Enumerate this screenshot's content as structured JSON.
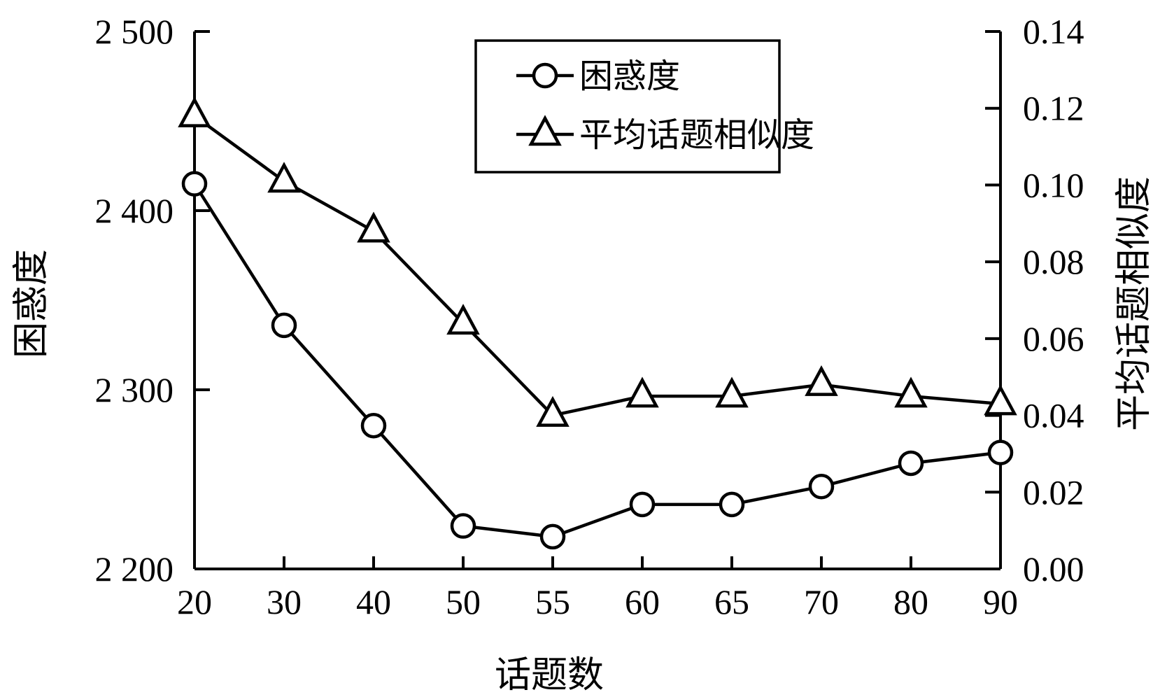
{
  "chart_data": {
    "type": "line",
    "x": [
      "20",
      "30",
      "40",
      "50",
      "55",
      "60",
      "65",
      "70",
      "80",
      "90"
    ],
    "xlabel": "话题数",
    "y_left": {
      "label": "困惑度",
      "range": [
        2200,
        2500
      ],
      "ticks": [
        2200,
        2300,
        2400,
        2500
      ],
      "tick_labels": [
        "2 200",
        "2 300",
        "2 400",
        "2 500"
      ]
    },
    "y_right": {
      "label": "平均话题相似度",
      "range": [
        0,
        0.14
      ],
      "ticks": [
        0,
        0.02,
        0.04,
        0.06,
        0.08,
        0.1,
        0.12,
        0.14
      ],
      "tick_labels": [
        "0.00",
        "0.02",
        "0.04",
        "0.06",
        "0.08",
        "0.10",
        "0.12",
        "0.14"
      ]
    },
    "series": [
      {
        "name": "困惑度",
        "axis": "left",
        "marker": "circle",
        "values": [
          2415,
          2336,
          2280,
          2224,
          2218,
          2236,
          2236,
          2246,
          2259,
          2265
        ]
      },
      {
        "name": "平均话题相似度",
        "axis": "right",
        "marker": "triangle",
        "values": [
          0.118,
          0.101,
          0.088,
          0.064,
          0.04,
          0.045,
          0.045,
          0.048,
          0.045,
          0.043
        ]
      }
    ],
    "legend": "top-right",
    "grid": false
  }
}
